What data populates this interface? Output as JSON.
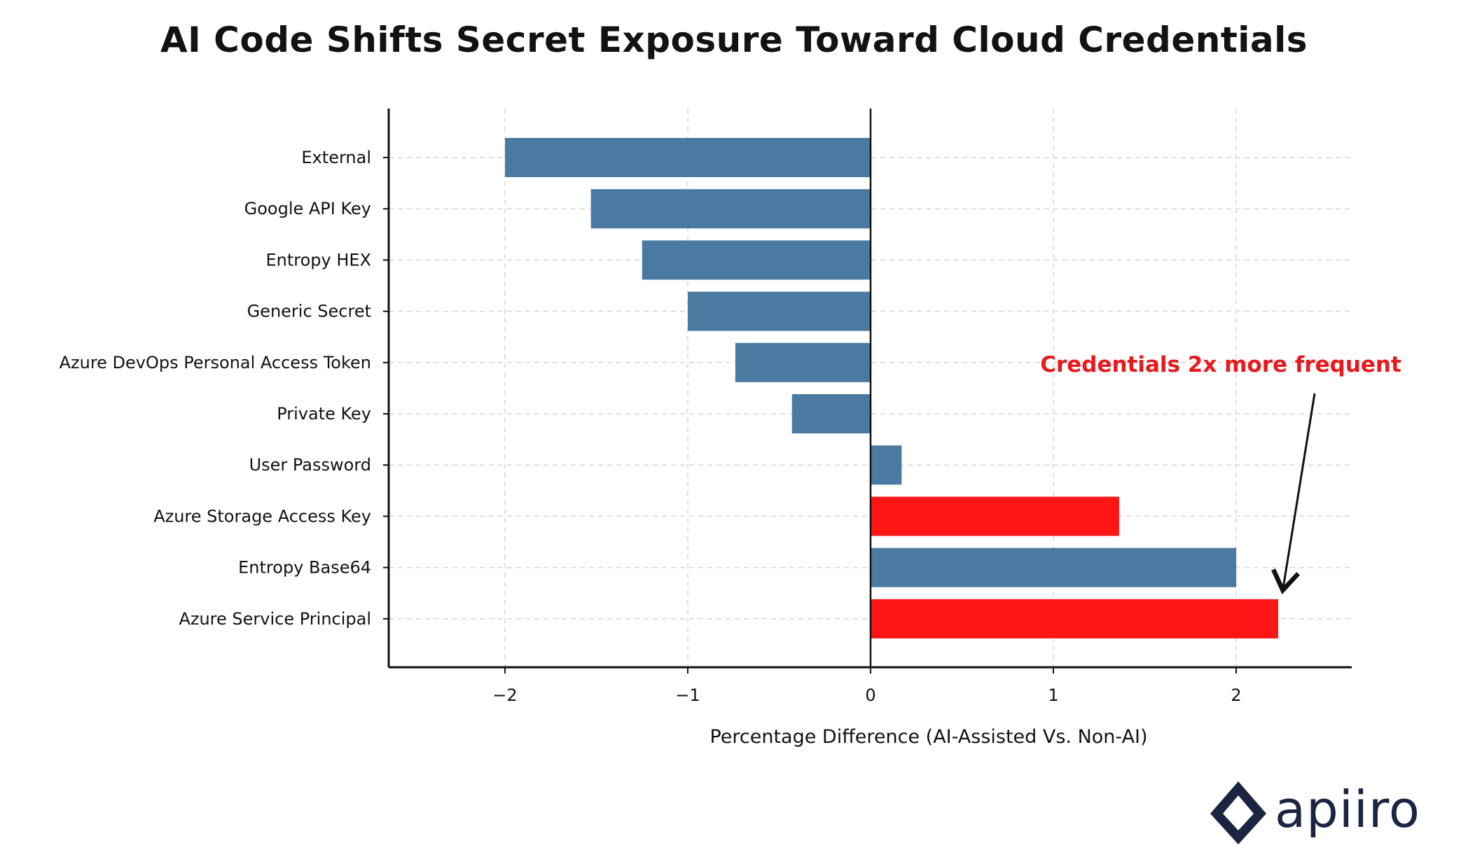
{
  "chart_data": {
    "type": "bar",
    "orientation": "horizontal",
    "title": "AI Code Shifts Secret Exposure Toward Cloud Credentials",
    "xlabel": "Percentage Difference (AI-Assisted Vs. Non-AI)",
    "ylabel": "",
    "xlim": [
      -2.6,
      2.6
    ],
    "xticks": [
      -2,
      -1,
      0,
      1,
      2
    ],
    "xtick_labels": [
      "-2",
      "-1",
      "0",
      "1",
      "2"
    ],
    "grid": true,
    "categories": [
      "External",
      "Google API Key",
      "Entropy HEX",
      "Generic Secret",
      "Azure DevOps Personal Access Token",
      "Private Key",
      "User Password",
      "Azure Storage Access Key",
      "Entropy Base64",
      "Azure Service Principal"
    ],
    "values": [
      -2.0,
      -1.53,
      -1.25,
      -1.0,
      -0.74,
      -0.43,
      0.17,
      1.36,
      2.0,
      2.23
    ],
    "highlight": [
      false,
      false,
      false,
      false,
      false,
      false,
      false,
      true,
      false,
      true
    ],
    "colors": {
      "default": "#4a7aa1",
      "highlight": "#fe1515",
      "axis": "#111111",
      "grid": "#d6d6d6"
    },
    "annotations": [
      {
        "text": "Credentials 2x more frequent",
        "color": "#e8191d",
        "points_to_category": "Azure Service Principal"
      }
    ]
  },
  "logo": {
    "text": "apiiro",
    "icon": "diamond-logo-icon",
    "color": "#1b2440"
  }
}
